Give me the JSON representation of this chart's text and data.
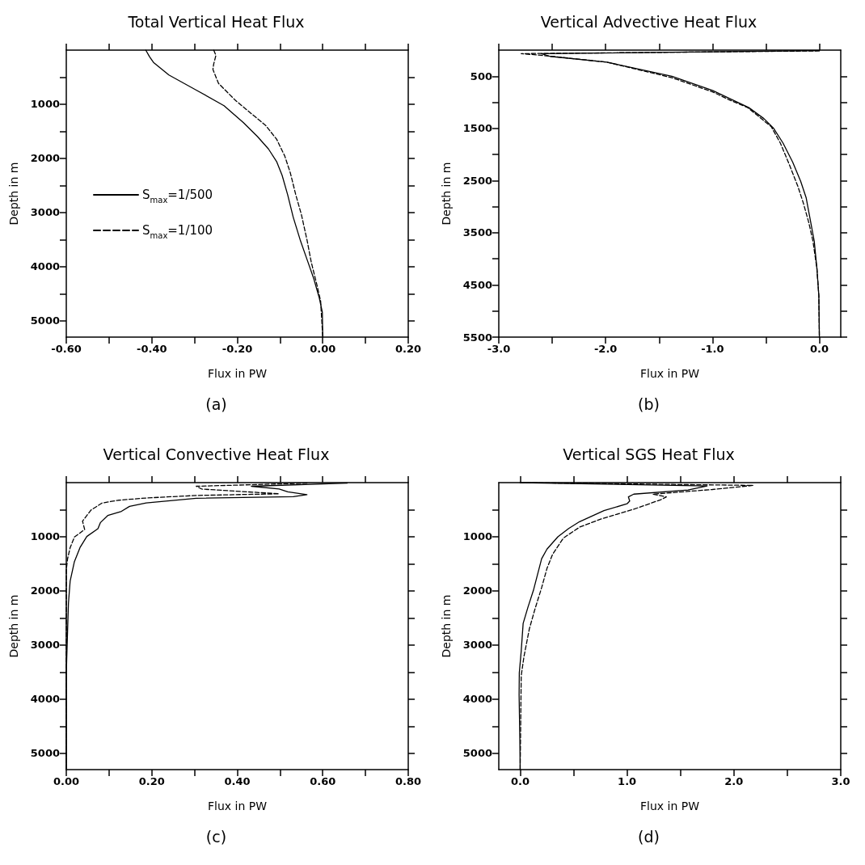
{
  "chart_data": [
    {
      "type": "line",
      "title": "Total Vertical Heat Flux",
      "xlabel": "Flux in PW",
      "ylabel": "Depth in m",
      "annotations": [
        "(a)"
      ],
      "legend": "middle left",
      "xlim": [
        -0.6,
        0.2
      ],
      "xticks": [
        {
          "value": -0.6,
          "label": "-0.60"
        },
        {
          "value": -0.5,
          "label": null
        },
        {
          "value": -0.4,
          "label": "-0.40"
        },
        {
          "value": -0.3,
          "label": null
        },
        {
          "value": -0.2,
          "label": "-0.20"
        },
        {
          "value": -0.1,
          "label": null
        },
        {
          "value": 0,
          "label": "0.00"
        },
        {
          "value": 0.1,
          "label": null
        },
        {
          "value": 0.2,
          "label": "0.20"
        }
      ],
      "ylim": [
        5300,
        0
      ],
      "yticks": [
        {
          "value": 500,
          "label": null
        },
        1000,
        {
          "value": 1500,
          "label": null
        },
        2000,
        {
          "value": 2500,
          "label": null
        },
        3000,
        {
          "value": 3500,
          "label": null
        },
        4000,
        {
          "value": 4500,
          "label": null
        },
        5000
      ],
      "series": [
        {
          "name": "S$_{max}$=1/500",
          "color": "#000000",
          "line_style": "solid",
          "x": [
            -0.414,
            -0.405,
            -0.396,
            -0.36,
            -0.295,
            -0.231,
            -0.186,
            -0.153,
            -0.127,
            -0.108,
            -0.095,
            -0.082,
            -0.069,
            -0.053,
            -0.037,
            -0.021,
            -0.008,
            -0.001,
            0
          ],
          "values": [
            0,
            124,
            227,
            459,
            742,
            1026,
            1335,
            1593,
            1825,
            2057,
            2314,
            2675,
            3088,
            3500,
            3861,
            4222,
            4582,
            4840,
            5300
          ]
        },
        {
          "name": "S$_{max}$=1/100",
          "color": "#000000",
          "line_style": "dashed",
          "x": [
            -0.255,
            -0.25,
            -0.255,
            -0.257,
            -0.244,
            -0.205,
            -0.166,
            -0.134,
            -0.108,
            -0.089,
            -0.076,
            -0.063,
            -0.05,
            -0.037,
            -0.027,
            -0.014,
            -0.005,
            0
          ],
          "values": [
            0,
            98,
            253,
            356,
            613,
            923,
            1180,
            1387,
            1644,
            1954,
            2263,
            2675,
            3036,
            3500,
            3912,
            4325,
            4634,
            5300
          ]
        }
      ]
    },
    {
      "type": "line",
      "title": "Vertical Advective Heat Flux",
      "xlabel": "Flux in PW",
      "ylabel": "Depth in m",
      "annotations": [
        "(b)"
      ],
      "xlim": [
        -3,
        0.2
      ],
      "xticks": [
        {
          "value": -3,
          "label": "-3.0"
        },
        {
          "value": -2.5,
          "label": null
        },
        {
          "value": -2,
          "label": "-2.0"
        },
        {
          "value": -1.5,
          "label": null
        },
        {
          "value": -1,
          "label": "-1.0"
        },
        {
          "value": -0.5,
          "label": null
        },
        {
          "value": 0,
          "label": "0.0"
        }
      ],
      "ylim": [
        5500,
        0
      ],
      "yticks": [
        500,
        {
          "value": 1000,
          "label": null
        },
        1500,
        {
          "value": 2000,
          "label": null
        },
        2500,
        {
          "value": 3000,
          "label": null
        },
        3500,
        {
          "value": 4000,
          "label": null
        },
        4500,
        {
          "value": 5000,
          "label": null
        },
        5500
      ],
      "series": [
        {
          "color": "#000000",
          "line_style": "solid",
          "x": [
            0,
            -2.6,
            -2.52,
            -1.99,
            -1.38,
            -1.0,
            -0.82,
            -0.66,
            -0.52,
            -0.43,
            -0.34,
            -0.25,
            -0.175,
            -0.124,
            -0.086,
            -0.048,
            -0.023,
            -0.005,
            0
          ],
          "values": [
            10,
            68,
            120,
            230,
            502,
            773,
            946,
            1102,
            1311,
            1494,
            1782,
            2147,
            2513,
            2827,
            3245,
            3662,
            4185,
            4707,
            5500
          ]
        },
        {
          "color": "#000000",
          "line_style": "dashed",
          "x": [
            0,
            -2.79,
            -2.6,
            -1.99,
            -1.38,
            -1.0,
            -0.85,
            -0.67,
            -0.45,
            -0.365,
            -0.28,
            -0.2,
            -0.15,
            -0.1,
            -0.06,
            -0.023,
            -0.005,
            0
          ],
          "values": [
            15,
            68,
            99,
            230,
            528,
            800,
            946,
            1102,
            1468,
            1782,
            2200,
            2618,
            2931,
            3297,
            3662,
            4185,
            4707,
            5500
          ]
        }
      ]
    },
    {
      "type": "line",
      "title": "Vertical Convective Heat Flux",
      "xlabel": "Flux in PW",
      "ylabel": "Depth in m",
      "annotations": [
        "(c)"
      ],
      "xlim": [
        0,
        0.8
      ],
      "xticks": [
        {
          "value": 0,
          "label": "0.00"
        },
        {
          "value": 0.1,
          "label": null
        },
        {
          "value": 0.2,
          "label": "0.20"
        },
        {
          "value": 0.3,
          "label": null
        },
        {
          "value": 0.4,
          "label": "0.40"
        },
        {
          "value": 0.5,
          "label": null
        },
        {
          "value": 0.6,
          "label": "0.60"
        },
        {
          "value": 0.7,
          "label": null
        },
        {
          "value": 0.8,
          "label": "0.80"
        }
      ],
      "ylim": [
        5300,
        0
      ],
      "yticks": [
        {
          "value": 500,
          "label": null
        },
        1000,
        {
          "value": 1500,
          "label": null
        },
        2000,
        {
          "value": 2500,
          "label": null
        },
        3000,
        {
          "value": 3500,
          "label": null
        },
        4000,
        {
          "value": 4500,
          "label": null
        },
        5000
      ],
      "series": [
        {
          "color": "#000000",
          "line_style": "solid",
          "x": [
            0.657,
            0.433,
            0.498,
            0.518,
            0.563,
            0.531,
            0.304,
            0.187,
            0.148,
            0.129,
            0.097,
            0.08,
            0.074,
            0.048,
            0.032,
            0.019,
            0.009,
            0.005,
            0.003,
            0.001,
            0,
            0
          ],
          "values": [
            10,
            67,
            119,
            170,
            222,
            258,
            289,
            376,
            438,
            531,
            608,
            737,
            851,
            995,
            1201,
            1459,
            1820,
            2232,
            2747,
            3263,
            3572,
            5300
          ]
        },
        {
          "color": "#000000",
          "line_style": "dashed",
          "x": [
            0.563,
            0.304,
            0.317,
            0.498,
            0.304,
            0.187,
            0.122,
            0.084,
            0.058,
            0.038,
            0.043,
            0.019,
            0.009,
            0.003,
            0,
            0
          ],
          "values": [
            10,
            67,
            119,
            206,
            237,
            284,
            325,
            376,
            505,
            711,
            866,
            1005,
            1201,
            1407,
            1613,
            5300
          ]
        }
      ]
    },
    {
      "type": "line",
      "title": "Vertical SGS Heat Flux",
      "xlabel": "Flux in PW",
      "ylabel": "Depth in m",
      "annotations": [
        "(d)"
      ],
      "xlim": [
        -0.2,
        3
      ],
      "xticks": [
        {
          "value": 0,
          "label": "0.0"
        },
        {
          "value": 0.5,
          "label": null
        },
        {
          "value": 1,
          "label": "1.0"
        },
        {
          "value": 1.5,
          "label": null
        },
        {
          "value": 2,
          "label": "2.0"
        },
        {
          "value": 2.5,
          "label": null
        },
        {
          "value": 3,
          "label": "3.0"
        }
      ],
      "ylim": [
        5300,
        0
      ],
      "yticks": [
        {
          "value": 500,
          "label": null
        },
        1000,
        {
          "value": 1500,
          "label": null
        },
        2000,
        {
          "value": 2500,
          "label": null
        },
        3000,
        {
          "value": 3500,
          "label": null
        },
        4000,
        {
          "value": 4500,
          "label": null
        },
        5000
      ],
      "series": [
        {
          "color": "#000000",
          "line_style": "solid",
          "x": [
            0,
            1.749,
            1.571,
            1.063,
            1.013,
            1.025,
            1.0,
            0.784,
            0.556,
            0.454,
            0.353,
            0.251,
            0.201,
            0.124,
            0.074,
            0.028,
            0.01,
            -0.008,
            -0.01,
            -0.003,
            0
          ],
          "values": [
            0,
            61,
            137,
            213,
            264,
            340,
            391,
            518,
            721,
            848,
            1000,
            1228,
            1406,
            1990,
            2294,
            2599,
            3107,
            3513,
            3919,
            4731,
            5300
          ]
        },
        {
          "color": "#000000",
          "line_style": "dashed",
          "x": [
            0,
            2.18,
            1.799,
            1.241,
            1.368,
            1.317,
            1.063,
            0.759,
            0.556,
            0.404,
            0.302,
            0.251,
            0.201,
            0.137,
            0.086,
            0.036,
            0.01,
            0
          ],
          "values": [
            0,
            51,
            127,
            213,
            264,
            315,
            492,
            670,
            822,
            1025,
            1330,
            1584,
            1939,
            2345,
            2701,
            3208,
            3563,
            5300
          ]
        }
      ]
    }
  ]
}
